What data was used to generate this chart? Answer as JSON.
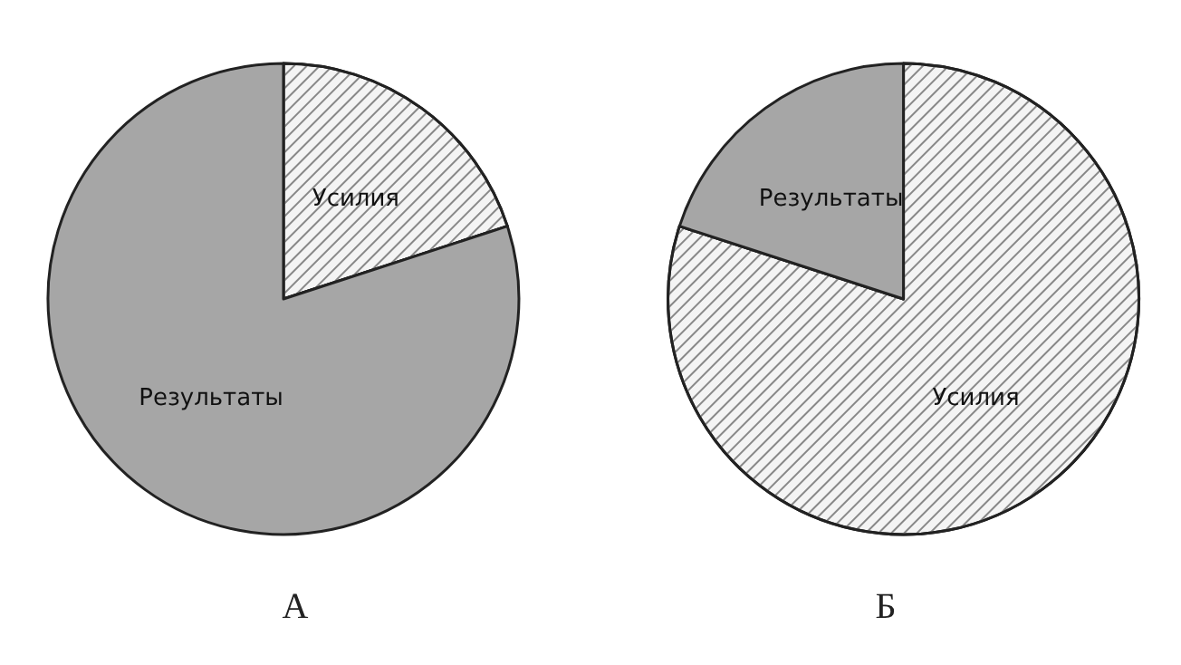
{
  "chart_data": [
    {
      "type": "pie",
      "title": "А",
      "categories": [
        "Усилия",
        "Результаты"
      ],
      "values": [
        20,
        80
      ],
      "colors": [
        "#f4f4f4",
        "#a6a6a6"
      ]
    },
    {
      "type": "pie",
      "title": "Б",
      "categories": [
        "Усилия",
        "Результаты"
      ],
      "values": [
        80,
        20
      ],
      "colors": [
        "#f4f4f4",
        "#a6a6a6"
      ]
    }
  ]
}
